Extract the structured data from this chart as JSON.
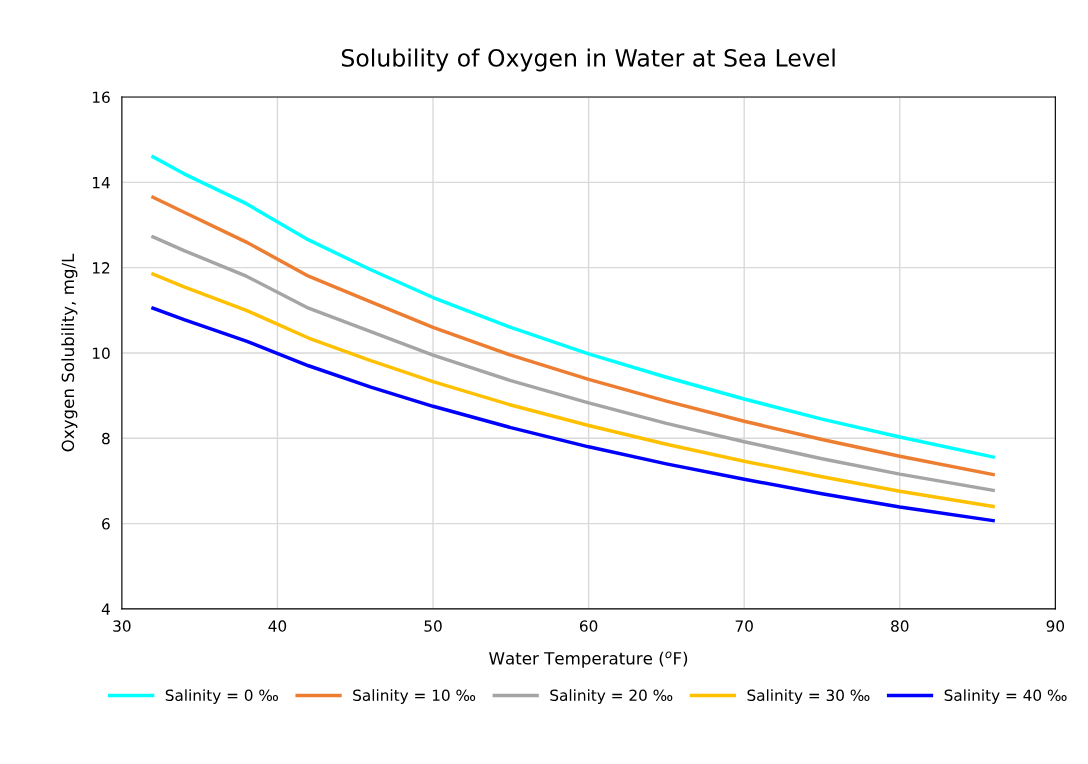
{
  "chart_data": {
    "type": "line",
    "title": "Solubility of Oxygen in Water at Sea Level",
    "xlabel": "Water Temperature ($^{o}$F)",
    "ylabel": "Oxygen Solubility, mg/L",
    "x": [
      32,
      34,
      38,
      42,
      46,
      50,
      55,
      60,
      65,
      70,
      75,
      80,
      86
    ],
    "xlim": [
      30,
      90
    ],
    "xticks": [
      30,
      40,
      50,
      60,
      70,
      80,
      90
    ],
    "ylim": [
      4,
      16
    ],
    "yticks": [
      4,
      6,
      8,
      10,
      12,
      14,
      16
    ],
    "grid": true,
    "legend": "bottom",
    "marker": "none",
    "line_style": "solid",
    "series": [
      {
        "name": "Salinity = 0 ‰",
        "color": "#00ffff",
        "values": [
          14.6,
          14.2,
          13.5,
          12.65,
          11.95,
          11.3,
          10.6,
          9.98,
          9.43,
          8.92,
          8.45,
          8.03,
          7.56
        ]
      },
      {
        "name": "Salinity = 10 ‰",
        "color": "#ed7d31",
        "values": [
          13.65,
          13.3,
          12.6,
          11.8,
          11.2,
          10.6,
          9.95,
          9.38,
          8.87,
          8.4,
          7.97,
          7.58,
          7.15
        ]
      },
      {
        "name": "Salinity = 20 ‰",
        "color": "#a5a5a5",
        "values": [
          12.72,
          12.4,
          11.8,
          11.05,
          10.5,
          9.95,
          9.35,
          8.83,
          8.35,
          7.92,
          7.52,
          7.16,
          6.78
        ]
      },
      {
        "name": "Salinity = 30 ‰",
        "color": "#ffc000",
        "values": [
          11.85,
          11.55,
          11.0,
          10.35,
          9.82,
          9.33,
          8.78,
          8.3,
          7.86,
          7.46,
          7.1,
          6.76,
          6.4
        ]
      },
      {
        "name": "Salinity = 40 ‰",
        "color": "#0000ff",
        "values": [
          11.05,
          10.78,
          10.28,
          9.7,
          9.2,
          8.75,
          8.25,
          7.8,
          7.4,
          7.04,
          6.7,
          6.39,
          6.07
        ]
      }
    ]
  }
}
